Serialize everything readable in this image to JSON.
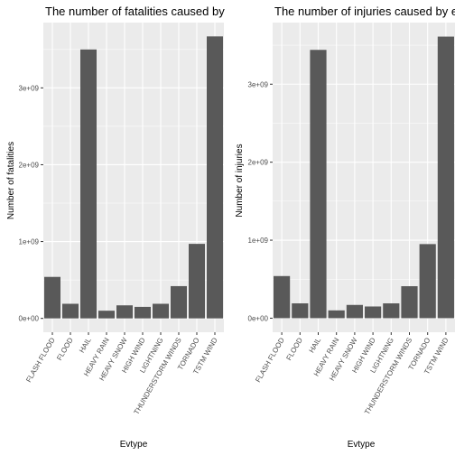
{
  "chart_data": [
    {
      "type": "bar",
      "title": "The number of fatalities caused by",
      "xlabel": "Evtype",
      "ylabel": "Number of fatalities",
      "categories": [
        "FLASH FLOOD",
        "FLOOD",
        "HAIL",
        "HEAVY RAIN",
        "HEAVY SNOW",
        "HIGH WIND",
        "LIGHTNING",
        "THUNDERSTORM WINDS",
        "TORNADO",
        "TSTM WIND"
      ],
      "values": [
        540000000,
        190000000,
        3500000000,
        100000000,
        170000000,
        150000000,
        190000000,
        420000000,
        970000000,
        3670000000
      ],
      "ylim": [
        -180000000,
        3850000000
      ],
      "yticks": [
        0,
        1000000000,
        2000000000,
        3000000000
      ],
      "ytick_labels": [
        "0e+00",
        "1e+09",
        "2e+09",
        "3e+09"
      ],
      "bar_color": "#595959",
      "panel_color": "#ebebeb",
      "grid": true
    },
    {
      "type": "bar",
      "title": "The number of injuries caused by e",
      "xlabel": "Evtype",
      "ylabel": "Number of injuries",
      "categories": [
        "FLASH FLOOD",
        "FLOOD",
        "HAIL",
        "HEAVY RAIN",
        "HEAVY SNOW",
        "HIGH WIND",
        "LIGHTNING",
        "THUNDERSTORM WINDS",
        "TORNADO",
        "TSTM WIND"
      ],
      "values": [
        540000000,
        190000000,
        3440000000,
        100000000,
        170000000,
        150000000,
        190000000,
        410000000,
        950000000,
        3610000000
      ],
      "ylim": [
        -180000000,
        3790000000
      ],
      "yticks": [
        0,
        1000000000,
        2000000000,
        3000000000
      ],
      "ytick_labels": [
        "0e+00",
        "1e+09",
        "2e+09",
        "3e+09"
      ],
      "bar_color": "#595959",
      "panel_color": "#ebebeb",
      "grid": true
    }
  ]
}
